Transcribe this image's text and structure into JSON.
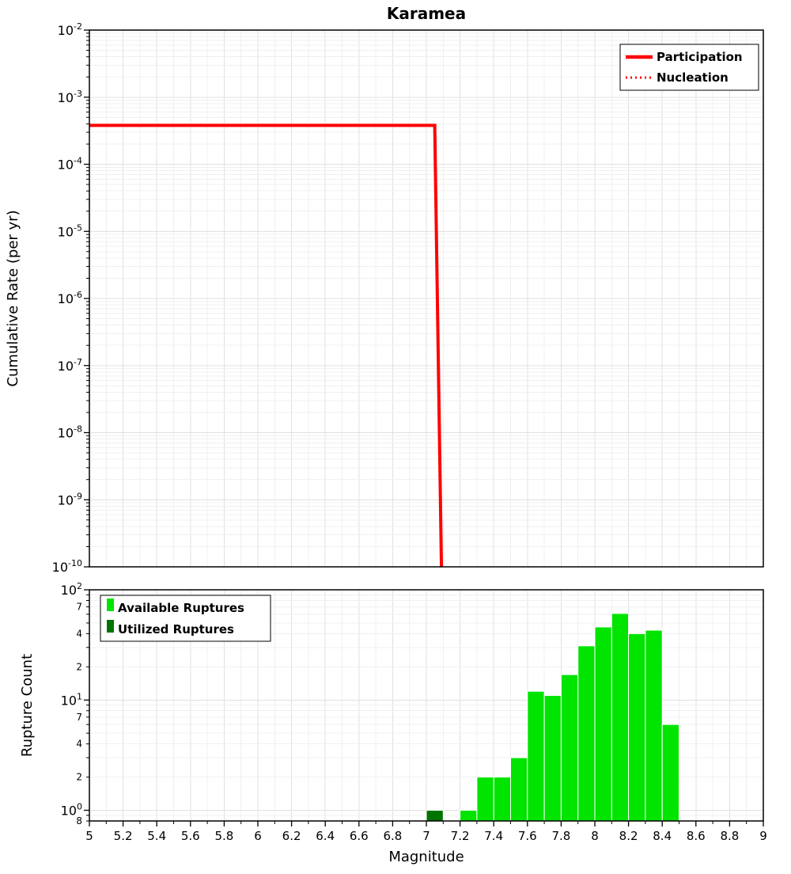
{
  "figure": {
    "title": "Karamea"
  },
  "colors": {
    "participation_red": "#ff0000",
    "available_green": "#00e400",
    "utilized_green": "#007400",
    "grid_major": "#e0e0e0",
    "grid_minor": "#f0f0f0",
    "frame": "#000000"
  },
  "chart_data": [
    {
      "type": "line",
      "title": "Karamea",
      "ylabel": "Cumulative Rate (per yr)",
      "xlim": [
        5,
        9
      ],
      "ylim": [
        1e-10,
        0.01
      ],
      "yscale": "log",
      "grid": true,
      "xtick_step": 0.2,
      "xminor_step": 0.1,
      "ytick_exponents": [
        -2,
        -3,
        -4,
        -5,
        -6,
        -7,
        -8,
        -9,
        -10
      ],
      "legend_position": "top-right",
      "series": [
        {
          "name": "Participation",
          "color": "#ff0000",
          "line_style": "solid",
          "line_width": 4,
          "points": [
            [
              5.0,
              0.00038
            ],
            [
              7.05,
              0.00038
            ],
            [
              7.09,
              8e-11
            ]
          ]
        },
        {
          "name": "Nucleation",
          "color": "#ff0000",
          "line_style": "dotted",
          "line_width": 3,
          "points": [
            [
              5.0,
              0.00038
            ],
            [
              7.05,
              0.00038
            ],
            [
              7.09,
              8e-11
            ]
          ]
        }
      ]
    },
    {
      "type": "bar",
      "xlabel": "Magnitude",
      "ylabel": "Rupture Count",
      "xlim": [
        5,
        9
      ],
      "ylim": [
        0.8,
        100
      ],
      "yscale": "log",
      "grid": true,
      "bar_width": 0.1,
      "xtick_step": 0.2,
      "xminor_step": 0.1,
      "xtick_labels": [
        "5",
        "5.2",
        "5.4",
        "5.6",
        "5.8",
        "6",
        "6.2",
        "6.4",
        "6.6",
        "6.8",
        "7",
        "7.2",
        "7.4",
        "7.6",
        "7.8",
        "8",
        "8.2",
        "8.4",
        "8.6",
        "8.8",
        "9"
      ],
      "yticks": [
        {
          "value": 100,
          "label": "10",
          "exponent": "2"
        },
        {
          "value": 70,
          "label": "7"
        },
        {
          "value": 40,
          "label": "4"
        },
        {
          "value": 20,
          "label": "2"
        },
        {
          "value": 10,
          "label": "10",
          "exponent": "1"
        },
        {
          "value": 7,
          "label": "7"
        },
        {
          "value": 4,
          "label": "4"
        },
        {
          "value": 2,
          "label": "2"
        },
        {
          "value": 1,
          "label": "10",
          "exponent": "0"
        },
        {
          "value": 0.8,
          "label": "8"
        }
      ],
      "legend_position": "top-left",
      "series": [
        {
          "name": "Available Ruptures",
          "color": "#00e400"
        },
        {
          "name": "Utilized Ruptures",
          "color": "#007400"
        }
      ],
      "bars": [
        {
          "magnitude": 7.05,
          "available": 1,
          "utilized": 1
        },
        {
          "magnitude": 7.25,
          "available": 1,
          "utilized": 0
        },
        {
          "magnitude": 7.35,
          "available": 2,
          "utilized": 0
        },
        {
          "magnitude": 7.45,
          "available": 2,
          "utilized": 0
        },
        {
          "magnitude": 7.55,
          "available": 3,
          "utilized": 0
        },
        {
          "magnitude": 7.65,
          "available": 12,
          "utilized": 0
        },
        {
          "magnitude": 7.75,
          "available": 11,
          "utilized": 0
        },
        {
          "magnitude": 7.85,
          "available": 17,
          "utilized": 0
        },
        {
          "magnitude": 7.95,
          "available": 31,
          "utilized": 0
        },
        {
          "magnitude": 8.05,
          "available": 46,
          "utilized": 0
        },
        {
          "magnitude": 8.15,
          "available": 61,
          "utilized": 0
        },
        {
          "magnitude": 8.25,
          "available": 40,
          "utilized": 0
        },
        {
          "magnitude": 8.35,
          "available": 43,
          "utilized": 0
        },
        {
          "magnitude": 8.45,
          "available": 6,
          "utilized": 0
        }
      ]
    }
  ]
}
